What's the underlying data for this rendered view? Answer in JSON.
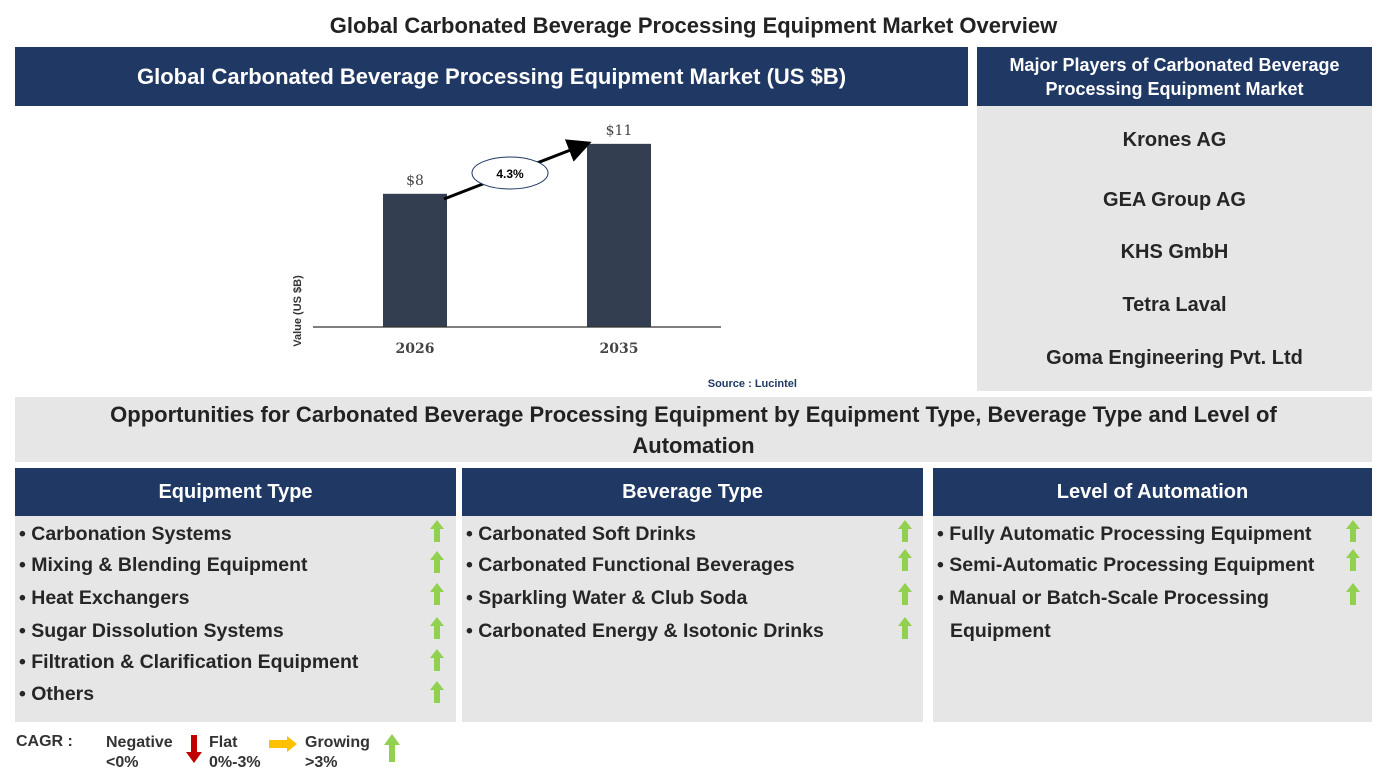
{
  "title": "Global Carbonated Beverage Processing Equipment Market Overview",
  "chart_panel": {
    "header": "Global Carbonated Beverage Processing Equipment Market (US $B)",
    "source": "Source : Lucintel"
  },
  "chart_data": {
    "type": "bar",
    "categories": [
      "2026",
      "2035"
    ],
    "values": [
      8,
      11
    ],
    "data_labels": [
      "$8",
      "$11"
    ],
    "ylabel": "Value (US $B)",
    "ylim": [
      0,
      12
    ],
    "annotation": "4.3%",
    "bar_color": "#333f50",
    "grid": false
  },
  "players": {
    "header": "Major Players of Carbonated Beverage Processing Equipment Market",
    "items": [
      "Krones AG",
      "GEA Group AG",
      "KHS GmbH",
      "Tetra Laval",
      "Goma Engineering Pvt. Ltd"
    ]
  },
  "opportunities": {
    "title": "Opportunities for Carbonated Beverage Processing Equipment by Equipment Type, Beverage Type and Level of Automation",
    "columns": [
      {
        "header": "Equipment Type",
        "items": [
          "• Carbonation Systems",
          "• Mixing & Blending Equipment",
          "• Heat Exchangers",
          "• Sugar Dissolution Systems",
          "• Filtration & Clarification Equipment",
          "• Others"
        ]
      },
      {
        "header": "Beverage Type",
        "items": [
          "• Carbonated Soft Drinks",
          "• Carbonated Functional Beverages",
          "• Sparkling Water & Club Soda",
          "• Carbonated Energy & Isotonic Drinks"
        ]
      },
      {
        "header": "Level of Automation",
        "items": [
          "• Fully Automatic Processing Equipment",
          "• Semi-Automatic Processing Equipment",
          "• Manual or Batch-Scale Processing",
          "Equipment"
        ]
      }
    ]
  },
  "legend": {
    "label": "CAGR :",
    "negative": "Negative",
    "negative_range": "<0%",
    "flat": "Flat",
    "flat_range": "0%-3%",
    "growing": "Growing",
    "growing_range": ">3%",
    "colors": {
      "negative": "#c00000",
      "flat": "#ffc000",
      "growing": "#92d050"
    }
  }
}
